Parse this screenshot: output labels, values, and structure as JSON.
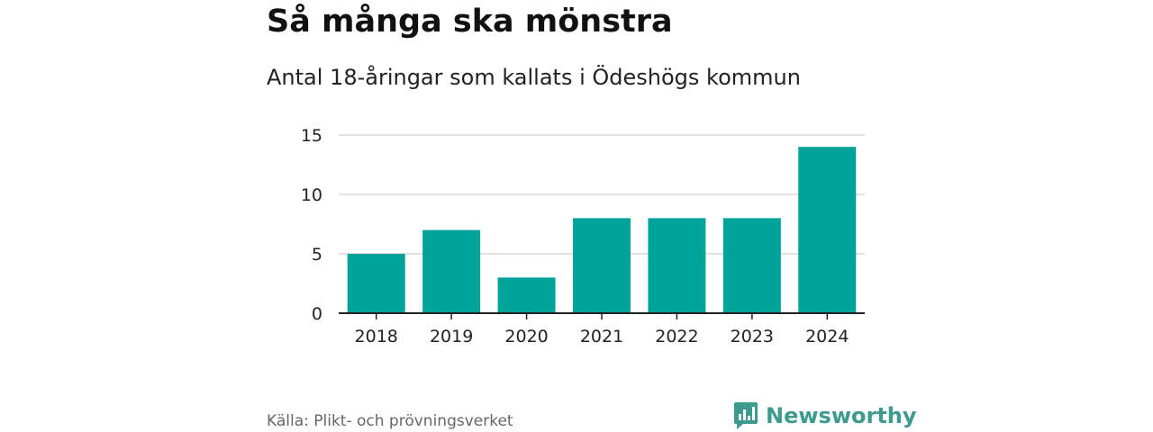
{
  "chart_data": {
    "type": "bar",
    "title": "Så många ska mönstra",
    "subtitle": "Antal 18-åringar som kallats i Ödeshögs kommun",
    "categories": [
      "2018",
      "2019",
      "2020",
      "2021",
      "2022",
      "2023",
      "2024"
    ],
    "values": [
      5,
      7,
      3,
      8,
      8,
      8,
      14
    ],
    "yticks": [
      "0",
      "5",
      "10",
      "15"
    ],
    "ylim": [
      0,
      15
    ],
    "xlabel": "",
    "ylabel": "",
    "grid": true,
    "bar_color": "#00a39a"
  },
  "footer": {
    "source": "Källa: Plikt- och prövningsverket",
    "brand": "Newsworthy",
    "brand_icon": "bar-chart-logo-icon"
  },
  "colors": {
    "brand": "#3d9a8e",
    "grid": "#d9d9d9",
    "axis": "#222222"
  }
}
